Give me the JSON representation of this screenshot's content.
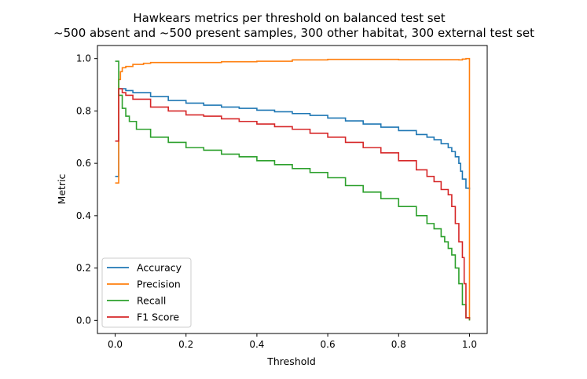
{
  "chart_data": {
    "type": "line",
    "title": "Hawkears metrics per threshold on balanced test set",
    "subtitle": "~500 absent and ~500 present samples, 300 other habitat, 300 external test set",
    "xlabel": "Threshold",
    "ylabel": "Metric",
    "xlim": [
      -0.05,
      1.05
    ],
    "ylim": [
      -0.05,
      1.05
    ],
    "xticks": [
      0.0,
      0.2,
      0.4,
      0.6,
      0.8,
      1.0
    ],
    "yticks": [
      0.0,
      0.2,
      0.4,
      0.6,
      0.8,
      1.0
    ],
    "xtick_labels": [
      "0.0",
      "0.2",
      "0.4",
      "0.6",
      "0.8",
      "1.0"
    ],
    "ytick_labels": [
      "0.0",
      "0.2",
      "0.4",
      "0.6",
      "0.8",
      "1.0"
    ],
    "grid": false,
    "legend_position": "lower-left",
    "step": true,
    "series": [
      {
        "name": "Accuracy",
        "color": "#1f77b4",
        "points": [
          [
            0.0,
            0.55
          ],
          [
            0.01,
            0.885
          ],
          [
            0.02,
            0.885
          ],
          [
            0.03,
            0.878
          ],
          [
            0.05,
            0.87
          ],
          [
            0.1,
            0.855
          ],
          [
            0.15,
            0.84
          ],
          [
            0.2,
            0.83
          ],
          [
            0.25,
            0.822
          ],
          [
            0.3,
            0.815
          ],
          [
            0.35,
            0.81
          ],
          [
            0.4,
            0.803
          ],
          [
            0.45,
            0.797
          ],
          [
            0.5,
            0.79
          ],
          [
            0.55,
            0.783
          ],
          [
            0.6,
            0.773
          ],
          [
            0.65,
            0.762
          ],
          [
            0.7,
            0.75
          ],
          [
            0.75,
            0.738
          ],
          [
            0.8,
            0.725
          ],
          [
            0.85,
            0.71
          ],
          [
            0.88,
            0.7
          ],
          [
            0.9,
            0.69
          ],
          [
            0.92,
            0.675
          ],
          [
            0.94,
            0.66
          ],
          [
            0.95,
            0.645
          ],
          [
            0.96,
            0.625
          ],
          [
            0.97,
            0.6
          ],
          [
            0.975,
            0.57
          ],
          [
            0.98,
            0.54
          ],
          [
            0.99,
            0.505
          ],
          [
            1.0,
            0.5
          ]
        ]
      },
      {
        "name": "Precision",
        "color": "#ff7f0e",
        "points": [
          [
            0.0,
            0.525
          ],
          [
            0.01,
            0.92
          ],
          [
            0.015,
            0.95
          ],
          [
            0.02,
            0.965
          ],
          [
            0.03,
            0.97
          ],
          [
            0.05,
            0.978
          ],
          [
            0.08,
            0.982
          ],
          [
            0.1,
            0.985
          ],
          [
            0.2,
            0.985
          ],
          [
            0.3,
            0.988
          ],
          [
            0.4,
            0.99
          ],
          [
            0.5,
            0.995
          ],
          [
            0.6,
            0.997
          ],
          [
            0.7,
            0.997
          ],
          [
            0.8,
            0.996
          ],
          [
            0.9,
            0.996
          ],
          [
            0.97,
            0.995
          ],
          [
            0.98,
            0.998
          ],
          [
            0.99,
            1.0
          ],
          [
            0.997,
            1.0
          ],
          [
            1.0,
            0.0
          ]
        ]
      },
      {
        "name": "Recall",
        "color": "#2ca02c",
        "points": [
          [
            0.0,
            0.99
          ],
          [
            0.01,
            0.86
          ],
          [
            0.02,
            0.81
          ],
          [
            0.03,
            0.78
          ],
          [
            0.04,
            0.76
          ],
          [
            0.06,
            0.73
          ],
          [
            0.1,
            0.7
          ],
          [
            0.15,
            0.68
          ],
          [
            0.2,
            0.66
          ],
          [
            0.25,
            0.65
          ],
          [
            0.3,
            0.635
          ],
          [
            0.35,
            0.625
          ],
          [
            0.4,
            0.61
          ],
          [
            0.45,
            0.595
          ],
          [
            0.5,
            0.58
          ],
          [
            0.55,
            0.565
          ],
          [
            0.6,
            0.545
          ],
          [
            0.65,
            0.515
          ],
          [
            0.7,
            0.49
          ],
          [
            0.75,
            0.465
          ],
          [
            0.8,
            0.435
          ],
          [
            0.85,
            0.4
          ],
          [
            0.88,
            0.37
          ],
          [
            0.9,
            0.35
          ],
          [
            0.92,
            0.32
          ],
          [
            0.93,
            0.3
          ],
          [
            0.94,
            0.275
          ],
          [
            0.95,
            0.25
          ],
          [
            0.96,
            0.2
          ],
          [
            0.97,
            0.14
          ],
          [
            0.98,
            0.06
          ],
          [
            0.99,
            0.01
          ],
          [
            1.0,
            0.0
          ]
        ]
      },
      {
        "name": "F1 Score",
        "color": "#d62728",
        "points": [
          [
            0.0,
            0.685
          ],
          [
            0.01,
            0.885
          ],
          [
            0.02,
            0.87
          ],
          [
            0.03,
            0.86
          ],
          [
            0.05,
            0.845
          ],
          [
            0.1,
            0.815
          ],
          [
            0.15,
            0.8
          ],
          [
            0.2,
            0.785
          ],
          [
            0.25,
            0.78
          ],
          [
            0.3,
            0.77
          ],
          [
            0.35,
            0.76
          ],
          [
            0.4,
            0.75
          ],
          [
            0.45,
            0.74
          ],
          [
            0.5,
            0.73
          ],
          [
            0.55,
            0.715
          ],
          [
            0.6,
            0.7
          ],
          [
            0.65,
            0.68
          ],
          [
            0.7,
            0.66
          ],
          [
            0.75,
            0.64
          ],
          [
            0.8,
            0.61
          ],
          [
            0.85,
            0.575
          ],
          [
            0.88,
            0.55
          ],
          [
            0.9,
            0.53
          ],
          [
            0.92,
            0.5
          ],
          [
            0.94,
            0.48
          ],
          [
            0.95,
            0.435
          ],
          [
            0.96,
            0.37
          ],
          [
            0.97,
            0.3
          ],
          [
            0.98,
            0.24
          ],
          [
            0.985,
            0.14
          ],
          [
            0.99,
            0.01
          ],
          [
            1.0,
            0.005
          ]
        ]
      }
    ]
  }
}
